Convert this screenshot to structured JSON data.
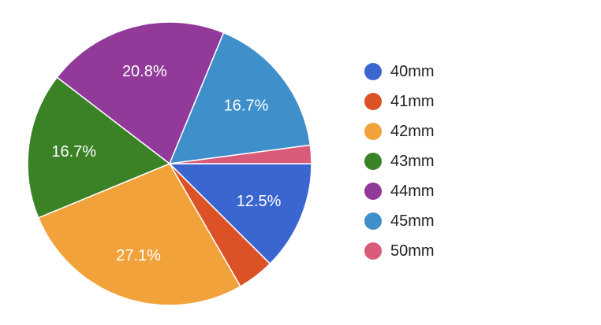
{
  "chart_data": {
    "type": "pie",
    "title": "",
    "legend_position": "right",
    "start_angle_deg": 90,
    "direction": "clockwise",
    "slices": [
      {
        "label": "40mm",
        "value": 12.5,
        "value_label": "12.5%",
        "color": "#3c66cf"
      },
      {
        "label": "41mm",
        "value": 4.2,
        "value_label": "",
        "color": "#dc5226"
      },
      {
        "label": "42mm",
        "value": 27.1,
        "value_label": "27.1%",
        "color": "#f1a23a"
      },
      {
        "label": "43mm",
        "value": 16.7,
        "value_label": "16.7%",
        "color": "#3b8227"
      },
      {
        "label": "44mm",
        "value": 20.8,
        "value_label": "20.8%",
        "color": "#923a9a"
      },
      {
        "label": "45mm",
        "value": 16.7,
        "value_label": "16.7%",
        "color": "#3f8fca"
      },
      {
        "label": "50mm",
        "value": 2.1,
        "value_label": "",
        "color": "#d95b7a"
      }
    ]
  }
}
